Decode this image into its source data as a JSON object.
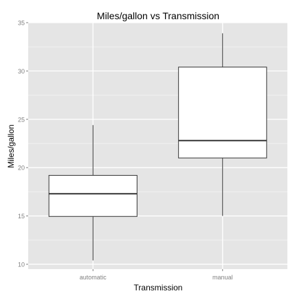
{
  "chart_data": {
    "type": "boxplot",
    "title": "Miles/gallon vs Transmission",
    "xlabel": "Transmission",
    "ylabel": "Miles/gallon",
    "categories": [
      "automatic",
      "manual"
    ],
    "ylim": [
      9.5,
      35
    ],
    "yticks": [
      10,
      15,
      20,
      25,
      30,
      35
    ],
    "grid": true,
    "boxes": [
      {
        "category": "automatic",
        "min": 10.4,
        "q1": 14.95,
        "median": 17.3,
        "q3": 19.2,
        "max": 24.4
      },
      {
        "category": "manual",
        "min": 15.0,
        "q1": 21.0,
        "median": 22.8,
        "q3": 30.4,
        "max": 33.9
      }
    ],
    "colors": {
      "panel": "#E5E5E5",
      "grid_major": "#FFFFFF",
      "grid_minor": "#F2F2F2",
      "box_fill": "#FFFFFF",
      "box_stroke": "#333333",
      "tick_text": "#808080",
      "title_text": "#000000"
    }
  }
}
